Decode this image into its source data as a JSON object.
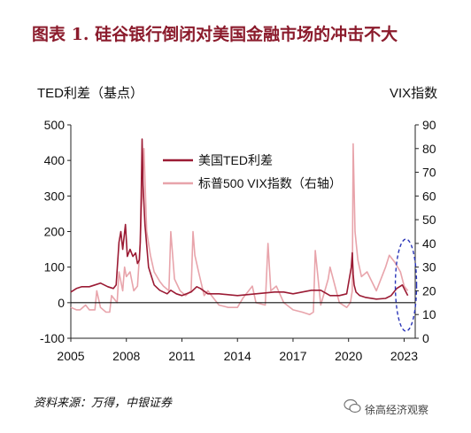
{
  "figure_title": "图表 1. 硅谷银行倒闭对美国金融市场的冲击不大",
  "source_note": "资料来源：万得，中银证券",
  "watermark_text": "徐高经济观察",
  "chart_data": {
    "type": "line",
    "ylabel_left": "TED利差（基点）",
    "ylabel_right": "VIX指数",
    "y_left_range": [
      -100,
      500
    ],
    "y_left_ticks": [
      "-100",
      "0",
      "100",
      "200",
      "300",
      "400",
      "500"
    ],
    "y_right_range": [
      0,
      90
    ],
    "y_right_ticks": [
      "0",
      "10",
      "20",
      "30",
      "40",
      "50",
      "60",
      "70",
      "80",
      "90"
    ],
    "x_range": [
      2005,
      2023.6
    ],
    "x_ticks": [
      "2005",
      "2008",
      "2011",
      "2014",
      "2017",
      "2020",
      "2023"
    ],
    "legend_position": "upper-center",
    "series": [
      {
        "name": "美国TED利差",
        "axis": "left",
        "color": "#9b1b34",
        "x": [
          2005.0,
          2005.3,
          2005.6,
          2006.0,
          2006.3,
          2006.6,
          2007.0,
          2007.3,
          2007.45,
          2007.6,
          2007.7,
          2007.8,
          2007.95,
          2008.05,
          2008.2,
          2008.35,
          2008.5,
          2008.6,
          2008.7,
          2008.75,
          2008.8,
          2008.85,
          2008.9,
          2009.0,
          2009.2,
          2009.5,
          2009.8,
          2010.2,
          2010.4,
          2010.7,
          2011.0,
          2011.5,
          2011.8,
          2012.0,
          2012.4,
          2013.0,
          2014.0,
          2015.0,
          2016.0,
          2016.5,
          2017.0,
          2017.5,
          2018.0,
          2018.5,
          2019.0,
          2019.5,
          2019.9,
          2020.15,
          2020.2,
          2020.25,
          2020.3,
          2020.4,
          2020.6,
          2020.9,
          2021.5,
          2022.0,
          2022.3,
          2022.6,
          2022.9,
          2023.1,
          2023.2
        ],
        "y": [
          30,
          40,
          45,
          45,
          50,
          55,
          45,
          40,
          50,
          170,
          200,
          150,
          220,
          130,
          150,
          130,
          140,
          110,
          120,
          170,
          300,
          460,
          330,
          220,
          100,
          50,
          35,
          25,
          35,
          25,
          20,
          30,
          45,
          40,
          25,
          25,
          20,
          25,
          30,
          30,
          25,
          30,
          35,
          35,
          20,
          20,
          25,
          100,
          140,
          80,
          50,
          30,
          20,
          15,
          10,
          12,
          20,
          40,
          50,
          30,
          20
        ]
      },
      {
        "name": "标普500 VIX指数（右轴）",
        "axis": "right",
        "color": "#e8a4ab",
        "x": [
          2005.0,
          2005.3,
          2005.5,
          2005.8,
          2006.0,
          2006.3,
          2006.4,
          2006.6,
          2006.9,
          2007.1,
          2007.2,
          2007.5,
          2007.6,
          2007.8,
          2007.9,
          2008.0,
          2008.2,
          2008.4,
          2008.6,
          2008.75,
          2008.85,
          2008.95,
          2009.1,
          2009.3,
          2009.5,
          2009.8,
          2010.0,
          2010.3,
          2010.4,
          2010.6,
          2010.9,
          2011.2,
          2011.5,
          2011.6,
          2011.7,
          2011.9,
          2012.2,
          2012.4,
          2012.7,
          2013.0,
          2013.5,
          2014.0,
          2014.3,
          2014.8,
          2015.0,
          2015.5,
          2015.65,
          2015.8,
          2016.1,
          2016.5,
          2017.0,
          2017.5,
          2017.9,
          2018.1,
          2018.2,
          2018.5,
          2018.9,
          2019.0,
          2019.5,
          2019.9,
          2020.1,
          2020.2,
          2020.25,
          2020.35,
          2020.5,
          2020.7,
          2021.0,
          2021.5,
          2022.0,
          2022.2,
          2022.5,
          2022.8,
          2023.0,
          2023.2
        ],
        "y": [
          13,
          12,
          12,
          14,
          12,
          12,
          20,
          13,
          11,
          11,
          18,
          15,
          28,
          20,
          30,
          26,
          28,
          20,
          22,
          40,
          60,
          80,
          45,
          35,
          28,
          24,
          22,
          20,
          45,
          25,
          20,
          18,
          20,
          45,
          35,
          28,
          18,
          20,
          17,
          14,
          13,
          13,
          17,
          22,
          15,
          14,
          40,
          20,
          22,
          15,
          12,
          11,
          10,
          11,
          37,
          14,
          25,
          30,
          15,
          13,
          15,
          20,
          82,
          45,
          33,
          26,
          28,
          20,
          30,
          35,
          32,
          28,
          22,
          20
        ]
      }
    ]
  }
}
